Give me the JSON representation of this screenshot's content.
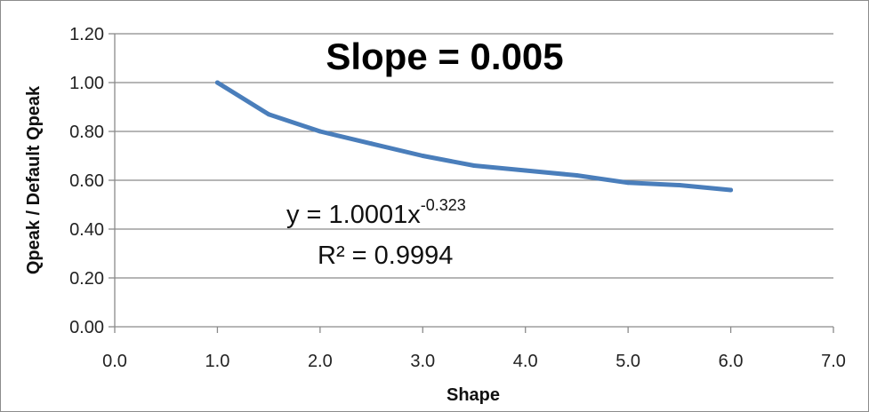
{
  "chart_data": {
    "type": "line",
    "title": "Slope = 0.005",
    "xlabel": "Shape",
    "ylabel": "Qpeak / Default Qpeak",
    "xlim": [
      0.0,
      7.0
    ],
    "ylim": [
      0.0,
      1.2
    ],
    "x_ticks": [
      0,
      1,
      2,
      3,
      4,
      5,
      6,
      7
    ],
    "x_tick_labels": [
      "0.0",
      "1.0",
      "2.0",
      "3.0",
      "4.0",
      "5.0",
      "6.0",
      "7.0"
    ],
    "y_ticks": [
      0,
      0.2,
      0.4,
      0.6,
      0.8,
      1.0,
      1.2
    ],
    "y_tick_labels": [
      "0.00",
      "0.20",
      "0.40",
      "0.60",
      "0.80",
      "1.00",
      "1.20"
    ],
    "grid": "horizontal",
    "series": [
      {
        "color": "#4a7ebb",
        "x": [
          1.0,
          1.5,
          2.0,
          2.5,
          3.0,
          3.5,
          4.0,
          4.5,
          5.0,
          5.5,
          6.0
        ],
        "y": [
          1.0,
          0.87,
          0.8,
          0.75,
          0.7,
          0.66,
          0.64,
          0.62,
          0.59,
          0.58,
          0.56
        ]
      }
    ],
    "annotations": {
      "equation_base": "y = 1.0001x",
      "equation_exponent": "-0.323",
      "r2_label": "R²",
      "r2_value": " = 0.9994"
    }
  }
}
